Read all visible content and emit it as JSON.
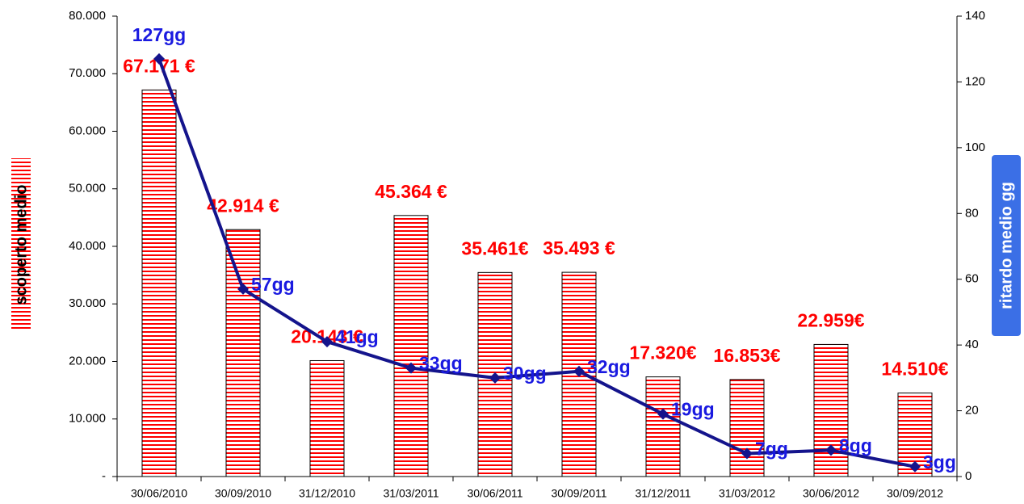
{
  "chart_data": {
    "type": "bar_line",
    "y_label": "scoperto medio",
    "y2_label": "ritardo medio gg",
    "categories": [
      "30/06/2010",
      "30/09/2010",
      "31/12/2010",
      "31/03/2011",
      "30/06/2011",
      "30/09/2011",
      "31/12/2011",
      "31/03/2012",
      "30/06/2012",
      "30/09/2012"
    ],
    "series": [
      {
        "type": "bar",
        "color": "#ff0000",
        "values": [
          67171,
          42914,
          20143,
          45364,
          35461,
          35493,
          17320,
          16853,
          22959,
          14510
        ],
        "value_labels": [
          "67.171 €",
          "42.914 €",
          "20.143 €",
          "45.364 €",
          "35.461€",
          "35.493 €",
          "17.320€",
          "16.853€",
          "22.959€",
          "14.510€"
        ]
      },
      {
        "type": "line",
        "axis": "y2",
        "color": "#14148c",
        "label_color": "#1a1ae0",
        "values": [
          127,
          57,
          41,
          33,
          30,
          32,
          19,
          7,
          8,
          3
        ],
        "value_labels": [
          "127gg",
          "57gg",
          "41gg",
          "33gg",
          "30gg",
          "32gg",
          "19gg",
          "7gg",
          "8gg",
          "3gg"
        ]
      }
    ],
    "ylim": [
      0,
      80000
    ],
    "yticks": [
      {
        "value": 0,
        "label": "-"
      },
      {
        "value": 10000,
        "label": "10.000"
      },
      {
        "value": 20000,
        "label": "20.000"
      },
      {
        "value": 30000,
        "label": "30.000"
      },
      {
        "value": 40000,
        "label": "40.000"
      },
      {
        "value": 50000,
        "label": "50.000"
      },
      {
        "value": 60000,
        "label": "60.000"
      },
      {
        "value": 70000,
        "label": "70.000"
      },
      {
        "value": 80000,
        "label": "80.000"
      }
    ],
    "y2lim": [
      0,
      140
    ],
    "y2ticks": [
      0,
      20,
      40,
      60,
      80,
      100,
      120,
      140
    ]
  }
}
